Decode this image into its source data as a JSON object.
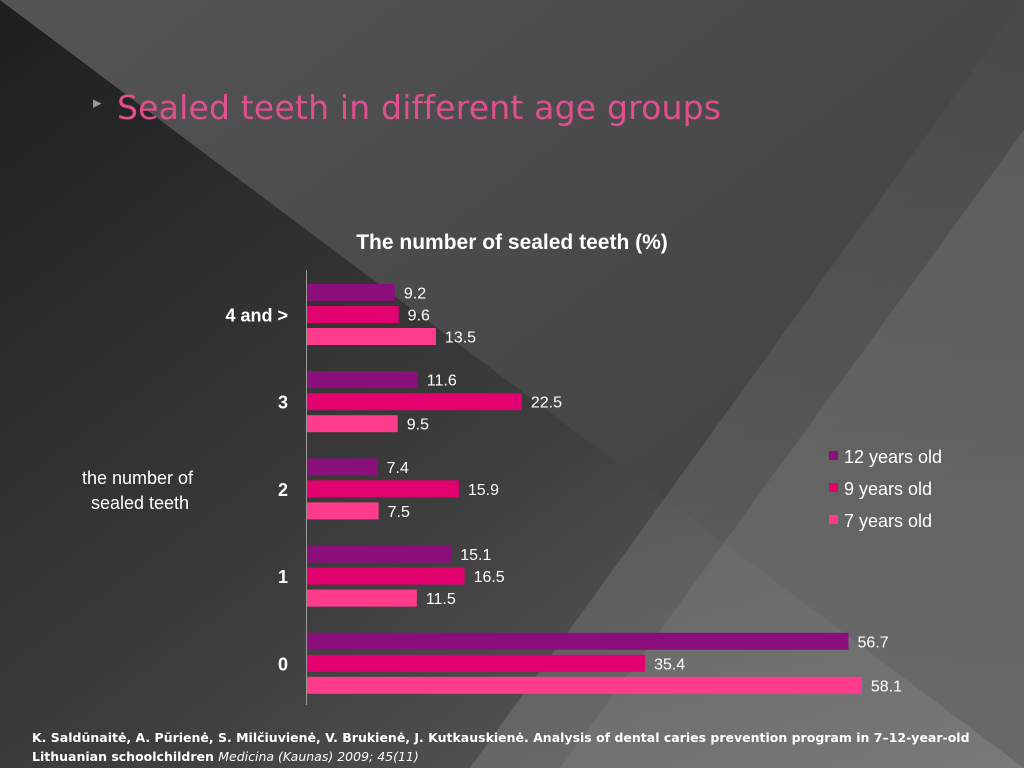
{
  "slide": {
    "title": "Sealed teeth in different age groups",
    "arrow_icon": "triangle-right-icon"
  },
  "chart_data": {
    "type": "bar",
    "orientation": "horizontal",
    "title": "The number of sealed teeth (%)",
    "ylabel": "the number of sealed teeth",
    "xlabel": "",
    "categories": [
      "4 and >",
      "3",
      "2",
      "1",
      "0"
    ],
    "series": [
      {
        "name": "12 years old",
        "color": "#8b0f7a",
        "values": [
          9.2,
          11.6,
          7.4,
          15.1,
          56.7
        ]
      },
      {
        "name": "9 years old",
        "color": "#e3006f",
        "values": [
          9.6,
          22.5,
          15.9,
          16.5,
          35.4
        ]
      },
      {
        "name": "7 years old",
        "color": "#ff3c8c",
        "values": [
          13.5,
          9.5,
          7.5,
          11.5,
          58.1
        ]
      }
    ],
    "xlim": [
      0,
      60
    ],
    "grid": false,
    "legend_position": "right",
    "data_labels": true
  },
  "footer": {
    "citation": "K. Saldūnaitė, A. Pūrienė, S. Milčiuvienė, V. Brukienė, J. Kutkauskienė. Analysis of dental caries prevention program in 7–12-year-old Lithuanian schoolchildren",
    "journal": "Medicina (Kaunas) 2009; 45(11)"
  }
}
